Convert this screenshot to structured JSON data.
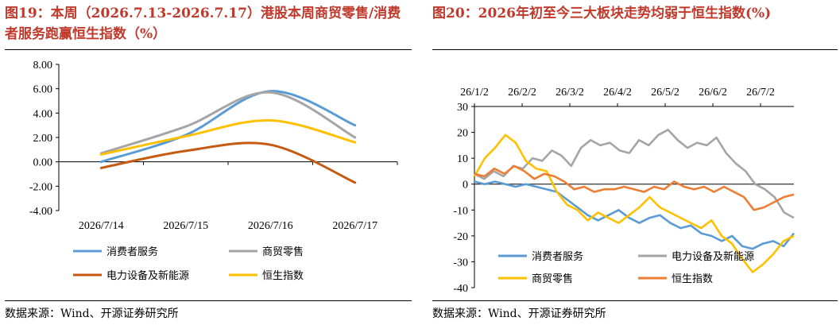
{
  "left_panel": {
    "title": "图19：本周（2026.7.13-2026.7.17）港股本周商贸零售/消费者服务跑赢恒生指数（%）",
    "source": "数据来源：Wind、开源证券研究所"
  },
  "right_panel": {
    "title": "图20：2026年初至今三大板块走势均弱于恒生指数(%)",
    "source": "数据来源：Wind、开源证券研究所"
  },
  "chart_data": [
    {
      "type": "line",
      "smooth": true,
      "categories": [
        "2026/7/14",
        "2026/7/15",
        "2026/7/16",
        "2026/7/17"
      ],
      "ylim": [
        -4,
        8
      ],
      "yticks": [
        "-4.00",
        "-2.00",
        "0.00",
        "2.00",
        "4.00",
        "6.00",
        "8.00"
      ],
      "grid": false,
      "legend_position": "bottom",
      "series": [
        {
          "name": "消费者服务",
          "color": "#5b9bd5",
          "values": [
            0.0,
            2.2,
            5.8,
            3.0
          ]
        },
        {
          "name": "商贸零售",
          "color": "#a5a5a5",
          "values": [
            0.7,
            2.9,
            5.7,
            2.0
          ]
        },
        {
          "name": "电力设备及新能源",
          "color": "#c55a11",
          "values": [
            -0.5,
            0.9,
            1.4,
            -1.7
          ]
        },
        {
          "name": "恒生指数",
          "color": "#ffc000",
          "values": [
            0.6,
            2.1,
            3.4,
            1.6
          ]
        }
      ]
    },
    {
      "type": "line",
      "x_ticks": [
        "26/1/2",
        "26/2/2",
        "26/3/2",
        "26/4/2",
        "26/5/2",
        "26/6/2",
        "26/7/2"
      ],
      "x_range": [
        "2026-01-02",
        "2026-07-17"
      ],
      "ylim": [
        -40,
        30
      ],
      "yticks": [
        "-40",
        "-30",
        "-20",
        "-10",
        "0",
        "10",
        "20",
        "30"
      ],
      "grid": false,
      "legend_position": "bottom",
      "series": [
        {
          "name": "消费者服务",
          "color": "#5b9bd5",
          "values": [
            1,
            0,
            1,
            0,
            -1,
            0,
            -1,
            -2,
            -3,
            -6,
            -9,
            -12,
            -14,
            -12,
            -10,
            -13,
            -15,
            -13,
            -12,
            -15,
            -17,
            -16,
            -19,
            -20,
            -22,
            -20,
            -24,
            -25,
            -23,
            -22,
            -24,
            -19
          ]
        },
        {
          "name": "电力设备及新能源",
          "color": "#a5a5a5",
          "values": [
            4,
            2,
            5,
            3,
            7,
            6,
            10,
            9,
            13,
            11,
            7,
            14,
            17,
            15,
            16,
            13,
            12,
            17,
            15,
            19,
            21,
            17,
            14,
            16,
            15,
            18,
            12,
            8,
            5,
            0,
            -2,
            -5,
            -11,
            -13
          ]
        },
        {
          "name": "商贸零售",
          "color": "#ffc000",
          "values": [
            3,
            10,
            14,
            19,
            16,
            9,
            6,
            5,
            -3,
            -8,
            -10,
            -14,
            -11,
            -13,
            -15,
            -12,
            -9,
            -5,
            -9,
            -11,
            -13,
            -15,
            -17,
            -14,
            -20,
            -23,
            -29,
            -34,
            -31,
            -27,
            -22,
            -20
          ]
        },
        {
          "name": "恒生指数",
          "color": "#ed7d31",
          "values": [
            4,
            3,
            6,
            4,
            7,
            5,
            2,
            4,
            3,
            1,
            -2,
            -1,
            -3,
            -2,
            -2,
            -1,
            -2,
            -3,
            -1,
            -2,
            1,
            -1,
            -2,
            -1,
            -3,
            -1,
            -3,
            -5,
            -10,
            -9,
            -7,
            -5,
            -4
          ]
        }
      ]
    }
  ]
}
